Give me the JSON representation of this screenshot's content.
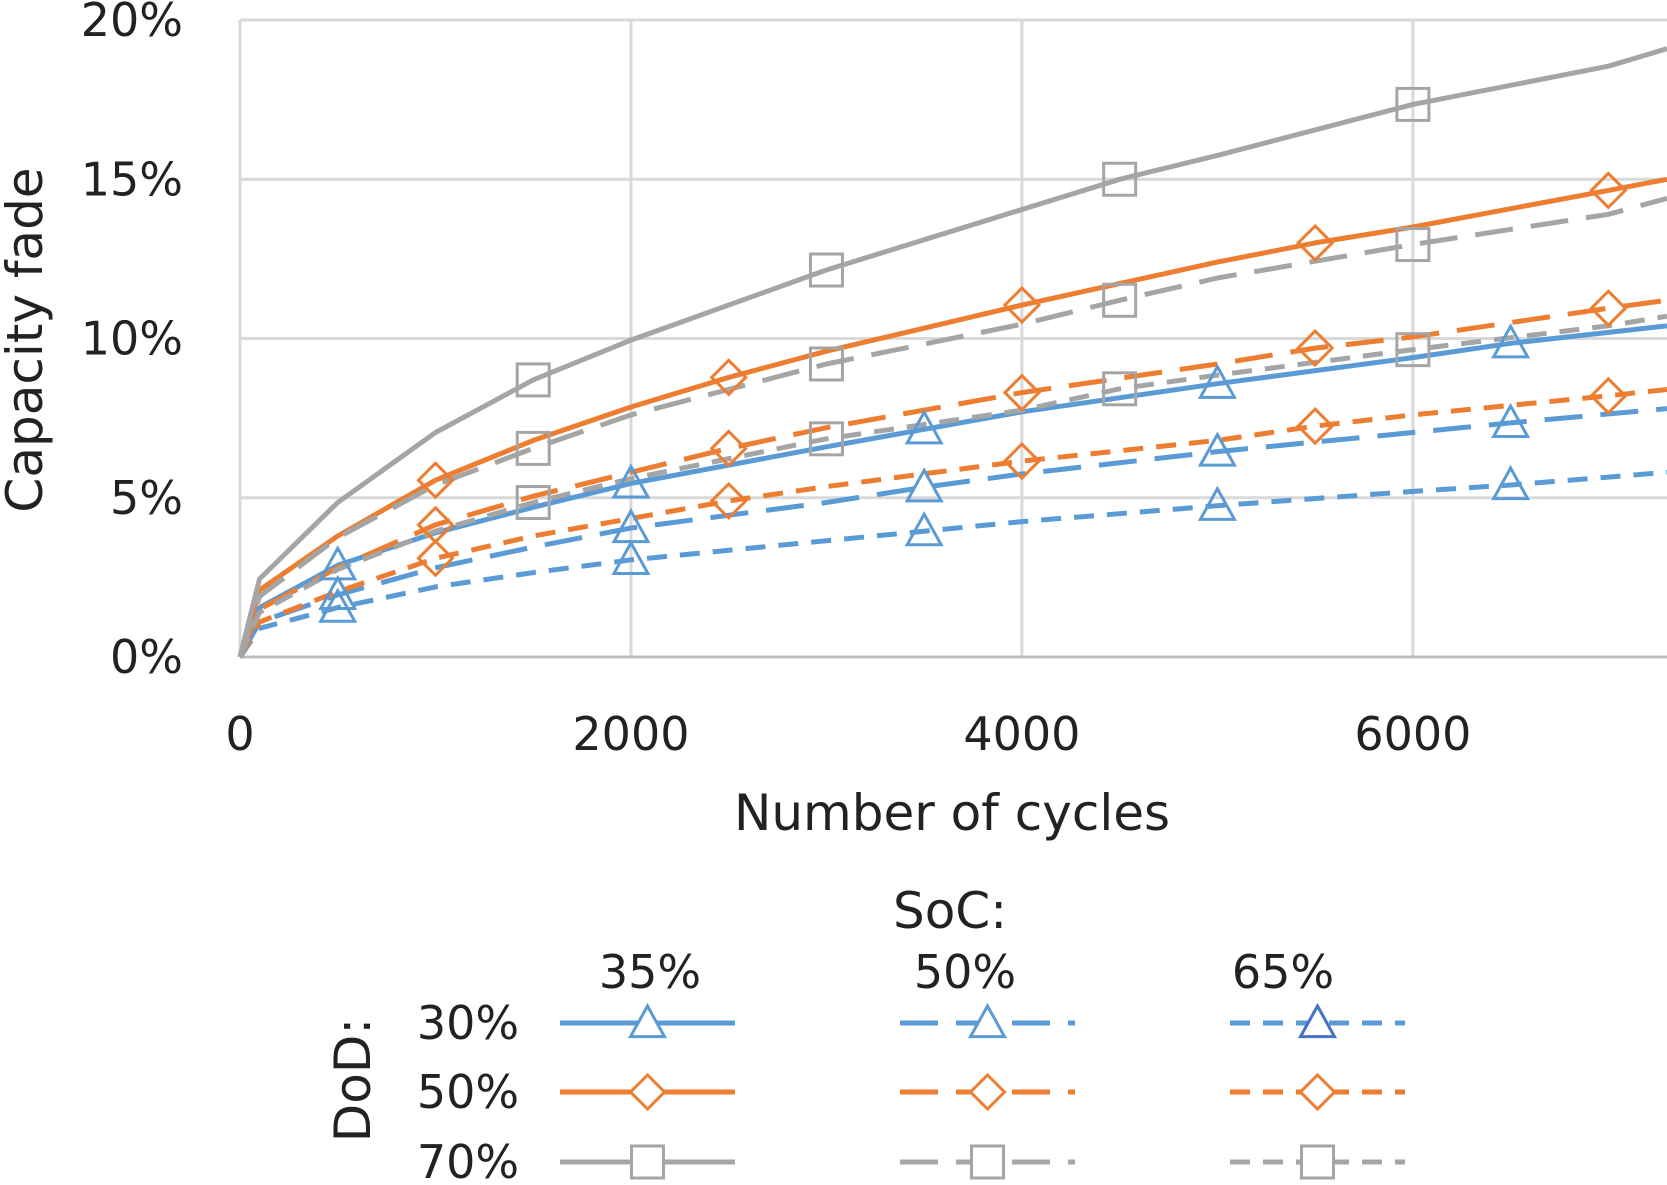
{
  "chart_data": {
    "type": "line",
    "title": "",
    "xlabel": "Number of cycles",
    "ylabel": "Capacity fade",
    "xlim": [
      0,
      7300
    ],
    "ylim": [
      0,
      0.2
    ],
    "xticks": [
      "0",
      "2000",
      "4000",
      "6000"
    ],
    "yticks": [
      "0%",
      "5%",
      "10%",
      "15%",
      "20%"
    ],
    "grid": true,
    "colors": {
      "blue": "#5b9bd5",
      "orange": "#ed7d31",
      "gray": "#a5a5a5",
      "dark_blue": "#4472c4"
    },
    "legend": {
      "soc_title": "SoC:",
      "dod_title": "DoD:",
      "soc_values": [
        "35%",
        "50%",
        "65%"
      ],
      "dod_values": [
        "30%",
        "50%",
        "70%"
      ],
      "placement": "bottom"
    },
    "series": [
      {
        "dod": "30%",
        "soc": "35%",
        "color": "blue",
        "dash": "solid",
        "marker": "triangle",
        "points": [
          [
            0,
            0
          ],
          [
            100,
            0.0155
          ],
          [
            500,
            0.0288
          ],
          [
            1000,
            0.039
          ],
          [
            1500,
            0.047
          ],
          [
            2000,
            0.0545
          ],
          [
            3000,
            0.066
          ],
          [
            3500,
            0.0715
          ],
          [
            4000,
            0.077
          ],
          [
            5000,
            0.0858
          ],
          [
            6000,
            0.094
          ],
          [
            6500,
            0.0985
          ],
          [
            7300,
            0.104
          ]
        ]
      },
      {
        "dod": "30%",
        "soc": "50%",
        "color": "blue",
        "dash": "long",
        "marker": "triangle",
        "points": [
          [
            0,
            0
          ],
          [
            100,
            0.011
          ],
          [
            500,
            0.0195
          ],
          [
            1000,
            0.028
          ],
          [
            1500,
            0.0345
          ],
          [
            2000,
            0.0405
          ],
          [
            3000,
            0.0485
          ],
          [
            3500,
            0.0533
          ],
          [
            4000,
            0.0575
          ],
          [
            5000,
            0.0645
          ],
          [
            6000,
            0.0705
          ],
          [
            6500,
            0.0735
          ],
          [
            7300,
            0.078
          ]
        ]
      },
      {
        "dod": "30%",
        "soc": "65%",
        "color": "blue",
        "dash": "short",
        "marker": "triangle",
        "points": [
          [
            0,
            0
          ],
          [
            100,
            0.009
          ],
          [
            500,
            0.0155
          ],
          [
            1000,
            0.022
          ],
          [
            1500,
            0.0265
          ],
          [
            2000,
            0.0305
          ],
          [
            3000,
            0.0365
          ],
          [
            3500,
            0.0395
          ],
          [
            4000,
            0.0425
          ],
          [
            5000,
            0.0475
          ],
          [
            6000,
            0.052
          ],
          [
            6500,
            0.054
          ],
          [
            7300,
            0.058
          ]
        ]
      },
      {
        "dod": "50%",
        "soc": "35%",
        "color": "orange",
        "dash": "solid",
        "marker": "diamond",
        "points": [
          [
            0,
            0
          ],
          [
            100,
            0.021
          ],
          [
            500,
            0.038
          ],
          [
            1000,
            0.0555
          ],
          [
            1500,
            0.068
          ],
          [
            2000,
            0.0785
          ],
          [
            2500,
            0.0878
          ],
          [
            3000,
            0.096
          ],
          [
            4000,
            0.1105
          ],
          [
            5000,
            0.124
          ],
          [
            5500,
            0.13
          ],
          [
            6000,
            0.135
          ],
          [
            7000,
            0.1465
          ],
          [
            7300,
            0.15
          ]
        ]
      },
      {
        "dod": "50%",
        "soc": "50%",
        "color": "orange",
        "dash": "long",
        "marker": "diamond",
        "points": [
          [
            0,
            0
          ],
          [
            100,
            0.015
          ],
          [
            500,
            0.028
          ],
          [
            1000,
            0.0415
          ],
          [
            1500,
            0.0505
          ],
          [
            2000,
            0.058
          ],
          [
            2500,
            0.0655
          ],
          [
            3000,
            0.072
          ],
          [
            4000,
            0.083
          ],
          [
            5000,
            0.092
          ],
          [
            5500,
            0.097
          ],
          [
            6000,
            0.1005
          ],
          [
            7000,
            0.1095
          ],
          [
            7300,
            0.112
          ]
        ]
      },
      {
        "dod": "50%",
        "soc": "65%",
        "color": "orange",
        "dash": "short",
        "marker": "diamond",
        "points": [
          [
            0,
            0
          ],
          [
            100,
            0.011
          ],
          [
            500,
            0.0205
          ],
          [
            1000,
            0.031
          ],
          [
            1500,
            0.038
          ],
          [
            2000,
            0.0435
          ],
          [
            2500,
            0.049
          ],
          [
            3000,
            0.0535
          ],
          [
            4000,
            0.0615
          ],
          [
            5000,
            0.068
          ],
          [
            5500,
            0.0725
          ],
          [
            6000,
            0.076
          ],
          [
            7000,
            0.082
          ],
          [
            7300,
            0.084
          ]
        ]
      },
      {
        "dod": "70%",
        "soc": "35%",
        "color": "gray",
        "dash": "solid",
        "marker": "square",
        "points": [
          [
            0,
            0
          ],
          [
            100,
            0.0245
          ],
          [
            500,
            0.0485
          ],
          [
            1000,
            0.0705
          ],
          [
            1500,
            0.087
          ],
          [
            2000,
            0.0995
          ],
          [
            3000,
            0.1215
          ],
          [
            4000,
            0.1405
          ],
          [
            4500,
            0.15
          ],
          [
            5000,
            0.1575
          ],
          [
            6000,
            0.1735
          ],
          [
            7000,
            0.1855
          ],
          [
            7300,
            0.191
          ]
        ]
      },
      {
        "dod": "70%",
        "soc": "50%",
        "color": "gray",
        "dash": "long",
        "marker": "square",
        "points": [
          [
            0,
            0
          ],
          [
            100,
            0.019
          ],
          [
            500,
            0.0375
          ],
          [
            1000,
            0.054
          ],
          [
            1500,
            0.0655
          ],
          [
            2000,
            0.076
          ],
          [
            3000,
            0.092
          ],
          [
            4000,
            0.1045
          ],
          [
            4500,
            0.112
          ],
          [
            5000,
            0.119
          ],
          [
            6000,
            0.1295
          ],
          [
            7000,
            0.139
          ],
          [
            7300,
            0.144
          ]
        ]
      },
      {
        "dod": "70%",
        "soc": "65%",
        "color": "gray",
        "dash": "short",
        "marker": "square",
        "points": [
          [
            0,
            0
          ],
          [
            100,
            0.014
          ],
          [
            500,
            0.0275
          ],
          [
            1000,
            0.0395
          ],
          [
            1500,
            0.0485
          ],
          [
            2000,
            0.056
          ],
          [
            3000,
            0.0685
          ],
          [
            4000,
            0.0775
          ],
          [
            4500,
            0.0842
          ],
          [
            5000,
            0.0885
          ],
          [
            6000,
            0.0965
          ],
          [
            7000,
            0.104
          ],
          [
            7300,
            0.107
          ]
        ]
      }
    ]
  }
}
